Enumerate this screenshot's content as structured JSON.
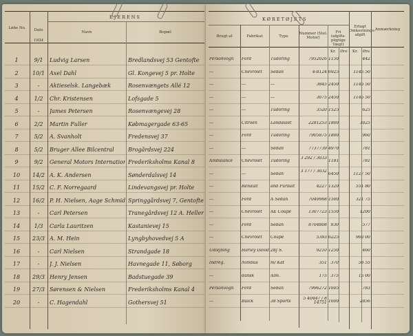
{
  "left_page": {
    "section_title": "EJERENS",
    "headers": {
      "no": "Løbe No.",
      "date": "Dato",
      "year": "1934",
      "name": "Navn",
      "address": "Bopæl"
    },
    "rows": [
      {
        "no": "1",
        "date": "9/1",
        "name": "Ludvig Larsen",
        "address": "Bredlandsvej 53 Gentofte"
      },
      {
        "no": "2",
        "date": "10/1",
        "name": "Axel Dahl",
        "address": "Gl. Kongevej 5 pr. Holte"
      },
      {
        "no": "3",
        "date": "-",
        "name": "Aktieselsk. Langebæk",
        "address": "Rosenvængets Allé 12"
      },
      {
        "no": "4",
        "date": "1/2",
        "name": "Chr. Kristensen",
        "address": "Lofsgade 5"
      },
      {
        "no": "5",
        "date": "-",
        "name": "James Petersen",
        "address": "Rosenvængevej 28"
      },
      {
        "no": "6",
        "date": "2/2",
        "name": "Martin Fuller",
        "address": "Købmagergade 63-65"
      },
      {
        "no": "7",
        "date": "5/2",
        "name": "A. Svanholt",
        "address": "Fredensvej 37"
      },
      {
        "no": "8",
        "date": "5/2",
        "name": "Bruger Allee Bilcentral",
        "address": "Brogårdsvej 224"
      },
      {
        "no": "9",
        "date": "9/2",
        "name": "General Motors International",
        "address": "Frederiksholms Kanal 8"
      },
      {
        "no": "10",
        "date": "14/2",
        "name": "A. K. Andersen",
        "address": "Sønderdalsvej 14"
      },
      {
        "no": "11",
        "date": "15/2",
        "name": "C. F. Norregaard",
        "address": "Lindevangsvej pr. Holte"
      },
      {
        "no": "12",
        "date": "16/2",
        "name": "P. H. Nielsen, Aage Schmidt",
        "address": "Springgårdsvej 7, Gentofte"
      },
      {
        "no": "13",
        "date": "-",
        "name": "Carl Petersen",
        "address": "Tranegårdsvej 12 A. Hellerup"
      },
      {
        "no": "14",
        "date": "1/3",
        "name": "Carla Lauritzen",
        "address": "Kastanievej 15"
      },
      {
        "no": "15",
        "date": "23/3",
        "name": "A. M. Hein",
        "address": "Lyngbyhovedvej 5 A"
      },
      {
        "no": "16",
        "date": "-",
        "name": "Carl Nielsen",
        "address": "Strandgade 18"
      },
      {
        "no": "17",
        "date": "-",
        "name": "J. J. Nielsen",
        "address": "Havnegade 11, Søborg"
      },
      {
        "no": "18",
        "date": "29/3",
        "name": "Henry Jensen",
        "address": "Badstuegade 39"
      },
      {
        "no": "19",
        "date": "27/3",
        "name": "Sørensen & Nielsen",
        "address": "Frederiksholms Kanal 4"
      },
      {
        "no": "20",
        "date": "-",
        "name": "C. Hagendahl",
        "address": "Gothersvej 51"
      }
    ]
  },
  "right_page": {
    "section_title": "KØRETØJETS",
    "headers": {
      "used_as": "Brugt af",
      "make": "Fabrikat",
      "type": "Type",
      "number": "Nummer (Stel. Motor)",
      "weight": "Fri (afgifts-pligtige Vægt)",
      "tax": "Erlagt Omkostnings-afgift",
      "remarks": "Anmærkning",
      "unit_kr": "Kr.",
      "unit_ore": "Øre"
    },
    "rows": [
      {
        "used": "Personvogn",
        "make": "Ford",
        "type": "Tudoring",
        "number": "7952026",
        "weight": "1150",
        "tax": "442"
      },
      {
        "used": "---",
        "make": "Chevrolet",
        "type": "Sedan",
        "number": "4-8124",
        "weight": "6925",
        "tax": "1145 50"
      },
      {
        "used": "---",
        "make": "---",
        "type": "---",
        "number": "3845",
        "weight": "2450",
        "tax": "1145 50"
      },
      {
        "used": "---",
        "make": "---",
        "type": "---",
        "number": "3075",
        "weight": "2450",
        "tax": "1145 50"
      },
      {
        "used": "---",
        "make": "---",
        "type": "Tudoring",
        "number": "3520",
        "weight": "1525",
        "tax": "625"
      },
      {
        "used": "---",
        "make": "Citroen",
        "type": "Landaulet",
        "number": "2281253",
        "weight": "1800",
        "tax": "3025"
      },
      {
        "used": "---",
        "make": "Ford",
        "type": "Tudoring",
        "number": "7905875",
        "weight": "1800",
        "tax": "960"
      },
      {
        "used": "---",
        "make": "---",
        "type": "Sedan",
        "number": "7737739",
        "weight": "4970",
        "tax": "781"
      },
      {
        "used": "Ambulance",
        "make": "Chevrolet",
        "type": "Tudoring",
        "number": "3 292 / 3033",
        "weight": "1181",
        "tax": "781"
      },
      {
        "used": "---",
        "make": "---",
        "type": "Sedan",
        "number": "3 177 / 3032",
        "weight": "6450",
        "tax": "1127 50"
      },
      {
        "used": "---",
        "make": "Renault",
        "type": "and Pursuit",
        "number": "4227",
        "weight": "1320",
        "tax": "551 80"
      },
      {
        "used": "---",
        "make": "Ford",
        "type": "A Sedan",
        "number": "7049988",
        "weight": "1500",
        "tax": "321 75"
      },
      {
        "used": "---",
        "make": "Chevrolet",
        "type": "AE Coupe",
        "number": "1307723",
        "weight": "1550",
        "tax": "1200"
      },
      {
        "used": "---",
        "make": "Ford",
        "type": "Sedan",
        "number": "8704808",
        "weight": "930",
        "tax": "577"
      },
      {
        "used": "---",
        "make": "Chevrolet",
        "type": "Coupe",
        "number": "5393",
        "weight": "6225",
        "tax": "960 00"
      },
      {
        "used": "Udlejning",
        "make": "Harley Davidson",
        "type": "28J S.",
        "number": "9210",
        "weight": "1250",
        "tax": "460"
      },
      {
        "used": "Indreg.",
        "make": "Nimbus",
        "type": "m/ Kat",
        "number": "351",
        "weight": "370",
        "tax": "58 55"
      },
      {
        "used": "---",
        "make": "dansk",
        "type": "Alm.",
        "number": "175",
        "weight": "375",
        "tax": "15 00"
      },
      {
        "used": "Personvogn",
        "make": "Ford",
        "type": "Sedan",
        "number": "7996272",
        "weight": "1605",
        "tax": "783"
      },
      {
        "used": "---",
        "make": "Buick",
        "type": "38 Sports",
        "number": "5 40447 / 8 14751",
        "weight": "1600",
        "tax": "2856"
      }
    ]
  },
  "colors": {
    "background": "#6d7a72",
    "paper": "#d8ccb3",
    "ink": "#2a2520"
  }
}
